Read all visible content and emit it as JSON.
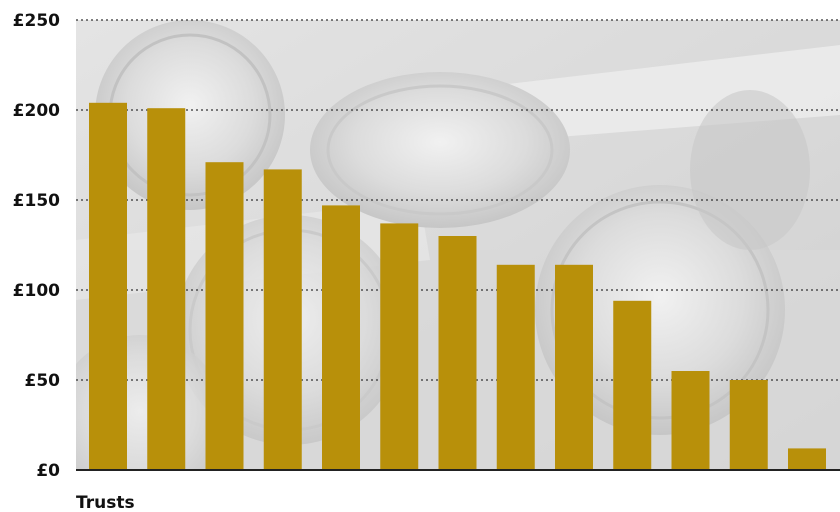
{
  "chart_data": {
    "type": "bar",
    "xlabel": "Trusts",
    "ylabel": "",
    "ylim": [
      0,
      250
    ],
    "ytick_values": [
      0,
      50,
      100,
      150,
      200,
      250
    ],
    "ytick_labels": [
      "£0",
      "£50",
      "£100",
      "£150",
      "£200",
      "£250"
    ],
    "values": [
      204,
      201,
      171,
      167,
      147,
      137,
      130,
      114,
      114,
      94,
      55,
      50,
      12
    ],
    "grid": true,
    "bar_color": "#b8900a",
    "grid_color": "#333333",
    "background": "photo-of-coins-and-banknotes"
  }
}
